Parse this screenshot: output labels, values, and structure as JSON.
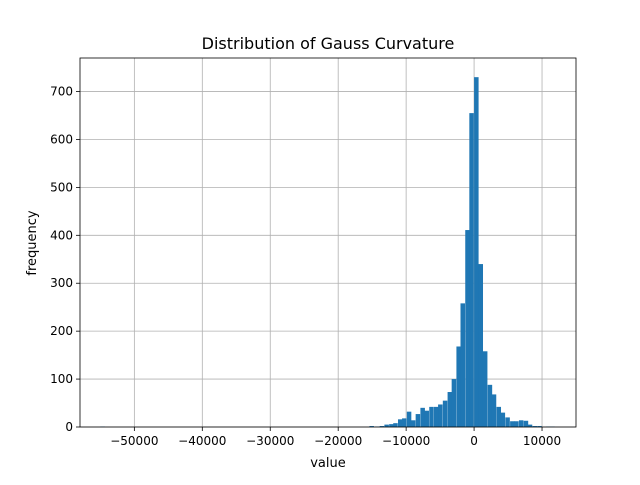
{
  "chart_data": {
    "type": "histogram",
    "title": "Distribution of Gauss Curvature",
    "xlabel": "value",
    "ylabel": "frequency",
    "xlim": [
      -58000,
      15000
    ],
    "ylim": [
      0,
      770
    ],
    "grid": true,
    "bar_color": "#1f77b4",
    "bin_width": 663,
    "x_ticks": [
      {
        "value": -50000,
        "label": "−50000"
      },
      {
        "value": -40000,
        "label": "−40000"
      },
      {
        "value": -30000,
        "label": "−30000"
      },
      {
        "value": -20000,
        "label": "−20000"
      },
      {
        "value": -10000,
        "label": "−10000"
      },
      {
        "value": 0,
        "label": "0"
      },
      {
        "value": 10000,
        "label": "10000"
      }
    ],
    "y_ticks": [
      {
        "value": 0,
        "label": "0"
      },
      {
        "value": 100,
        "label": "100"
      },
      {
        "value": 200,
        "label": "200"
      },
      {
        "value": 300,
        "label": "300"
      },
      {
        "value": 400,
        "label": "400"
      },
      {
        "value": 500,
        "label": "500"
      },
      {
        "value": 600,
        "label": "600"
      },
      {
        "value": 700,
        "label": "700"
      }
    ],
    "bins": [
      {
        "x": -55000,
        "count": 1
      },
      {
        "x": -15400,
        "count": 2
      },
      {
        "x": -14600,
        "count": 1
      },
      {
        "x": -13900,
        "count": 2
      },
      {
        "x": -13200,
        "count": 5
      },
      {
        "x": -12500,
        "count": 6
      },
      {
        "x": -11900,
        "count": 8
      },
      {
        "x": -11200,
        "count": 16
      },
      {
        "x": -10600,
        "count": 18
      },
      {
        "x": -9900,
        "count": 32
      },
      {
        "x": -9300,
        "count": 14
      },
      {
        "x": -8600,
        "count": 27
      },
      {
        "x": -7900,
        "count": 40
      },
      {
        "x": -7300,
        "count": 34
      },
      {
        "x": -6600,
        "count": 42
      },
      {
        "x": -5900,
        "count": 42
      },
      {
        "x": -5300,
        "count": 47
      },
      {
        "x": -4600,
        "count": 55
      },
      {
        "x": -3900,
        "count": 73
      },
      {
        "x": -3300,
        "count": 100
      },
      {
        "x": -2600,
        "count": 168
      },
      {
        "x": -2000,
        "count": 258
      },
      {
        "x": -1300,
        "count": 411
      },
      {
        "x": -700,
        "count": 655
      },
      {
        "x": 0,
        "count": 730
      },
      {
        "x": 650,
        "count": 340
      },
      {
        "x": 1300,
        "count": 158
      },
      {
        "x": 2000,
        "count": 88
      },
      {
        "x": 2600,
        "count": 68
      },
      {
        "x": 3300,
        "count": 42
      },
      {
        "x": 3900,
        "count": 30
      },
      {
        "x": 4600,
        "count": 20
      },
      {
        "x": 5300,
        "count": 12
      },
      {
        "x": 5900,
        "count": 12
      },
      {
        "x": 6600,
        "count": 14
      },
      {
        "x": 7300,
        "count": 13
      },
      {
        "x": 7900,
        "count": 5
      },
      {
        "x": 8600,
        "count": 2
      },
      {
        "x": 9300,
        "count": 2
      },
      {
        "x": 10600,
        "count": 1
      },
      {
        "x": 11200,
        "count": 1
      }
    ]
  }
}
